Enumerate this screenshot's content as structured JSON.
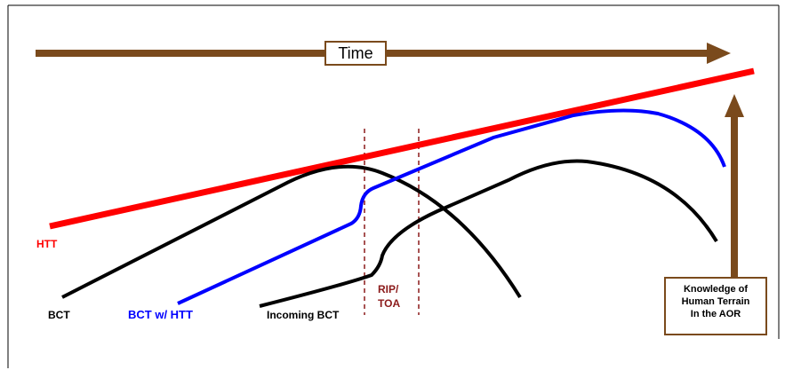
{
  "colors": {
    "time_arrow": "#7a4a1c",
    "htt_line": "#ff0000",
    "bct_line": "#000000",
    "bct_htt_line": "#0000ff",
    "rip_toa": "#8b1a1a"
  },
  "time_label": "Time",
  "labels": {
    "htt": "HTT",
    "bct": "BCT",
    "bct_w_htt": "BCT w/ HTT",
    "incoming_bct": "Incoming BCT",
    "rip_line1": "RIP/",
    "rip_line2": "TOA"
  },
  "knowledge_box": {
    "line1": "Knowledge of",
    "line2": "Human Terrain",
    "line3": "In the AOR"
  }
}
